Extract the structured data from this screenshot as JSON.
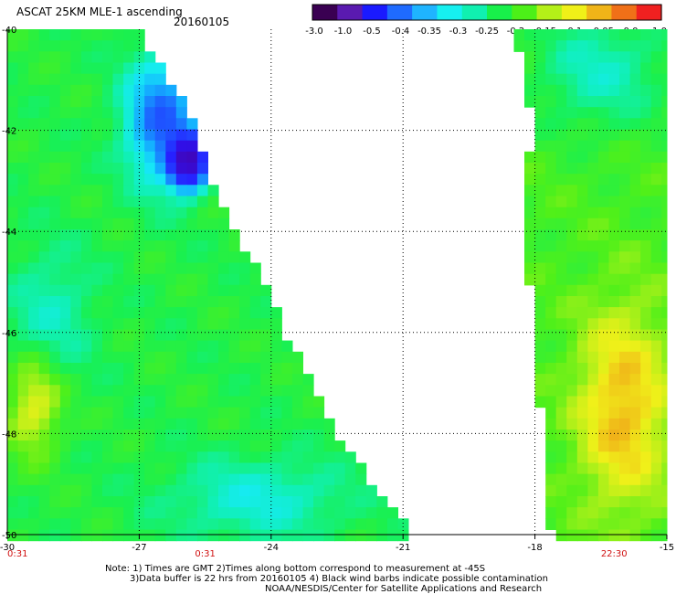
{
  "header": {
    "title": "ASCAT 25KM MLE-1 ascending",
    "date": "20160105"
  },
  "colorbar": {
    "tick_labels": [
      "-3.0",
      "-1.0",
      "-0.5",
      "-0.4",
      "-0.35",
      "-0.3",
      "-0.25",
      "-0.2",
      "-0.15",
      "-0.1",
      "-0.05",
      "0.0",
      "1.0"
    ],
    "colors": [
      "#3a0052",
      "#5a1ab0",
      "#1a1aff",
      "#1f6bff",
      "#1fb4ff",
      "#16f0f0",
      "#10f0b0",
      "#18f04a",
      "#4cf018",
      "#b4f018",
      "#f0f018",
      "#f0b418",
      "#f07018",
      "#f02020"
    ]
  },
  "chart_data": {
    "type": "heatmap",
    "x_ticks": [
      -30,
      -27,
      -24,
      -21,
      -18,
      -15
    ],
    "y_ticks": [
      -40,
      -42,
      -44,
      -46,
      -48,
      -50
    ],
    "x_tick_labels": [
      "-30",
      "-27",
      "-24",
      "-21",
      "-18",
      "-15"
    ],
    "y_tick_labels": [
      "-40",
      "-42",
      "-44",
      "-46",
      "-48",
      "-50"
    ],
    "xlim": [
      -30,
      -15
    ],
    "ylim": [
      -50,
      -40
    ],
    "grid": true,
    "time_labels": [
      {
        "text": "0:31",
        "x": -30
      },
      {
        "text": "0:31",
        "x": -25.5
      },
      {
        "text": "22:30",
        "x": -16.2
      }
    ],
    "swaths": [
      {
        "rows": [
          {
            "lat": -40,
            "lon_start": -30,
            "lon_end": -27.2
          },
          {
            "lat": -41,
            "lon_start": -30,
            "lon_end": -26.4
          },
          {
            "lat": -42,
            "lon_start": -30,
            "lon_end": -25.8
          },
          {
            "lat": -43,
            "lon_start": -30,
            "lon_end": -25.5
          },
          {
            "lat": -44,
            "lon_start": -30,
            "lon_end": -24.9
          },
          {
            "lat": -45,
            "lon_start": -30,
            "lon_end": -24.3
          },
          {
            "lat": -46,
            "lon_start": -30,
            "lon_end": -23.8
          },
          {
            "lat": -47,
            "lon_start": -30,
            "lon_end": -23.2
          },
          {
            "lat": -48,
            "lon_start": -30,
            "lon_end": -22.6
          },
          {
            "lat": -49,
            "lon_start": -30,
            "lon_end": -21.8
          },
          {
            "lat": -50,
            "lon_start": -30,
            "lon_end": -20.9
          }
        ]
      },
      {
        "rows": [
          {
            "lat": -40,
            "lon_start": -18.4,
            "lon_end": -15
          },
          {
            "lat": -41,
            "lon_start": -18.1,
            "lon_end": -15
          },
          {
            "lat": -42,
            "lon_start": -17.9,
            "lon_end": -15
          },
          {
            "lat": -43,
            "lon_start": -18.1,
            "lon_end": -15
          },
          {
            "lat": -44,
            "lon_start": -18.2,
            "lon_end": -15
          },
          {
            "lat": -45,
            "lon_start": -18.0,
            "lon_end": -15
          },
          {
            "lat": -46,
            "lon_start": -17.9,
            "lon_end": -15
          },
          {
            "lat": -47,
            "lon_start": -17.8,
            "lon_end": -15
          },
          {
            "lat": -48,
            "lon_start": -17.7,
            "lon_end": -15
          },
          {
            "lat": -49,
            "lon_start": -17.6,
            "lon_end": -15
          },
          {
            "lat": -50,
            "lon_start": -17.5,
            "lon_end": -15
          }
        ]
      }
    ],
    "features": [
      {
        "name": "low-mle-region",
        "value": -0.45,
        "lat_center": -41.8,
        "lon_center": -26.5,
        "lat_radius": 1.5,
        "lon_radius": 1.0
      },
      {
        "name": "very-low-mle-core",
        "value": -0.9,
        "lat_center": -42.6,
        "lon_center": -25.9,
        "lat_radius": 0.6,
        "lon_radius": 0.5
      },
      {
        "name": "cyan-band-west",
        "value": -0.28,
        "lat_center": -45.6,
        "lon_center": -29.0,
        "lat_radius": 1.6,
        "lon_radius": 1.2
      },
      {
        "name": "yellow-patch-west",
        "value": -0.1,
        "lat_center": -47.5,
        "lon_center": -29.4,
        "lat_radius": 1.2,
        "lon_radius": 0.8
      },
      {
        "name": "cyan-trail-south",
        "value": -0.3,
        "lat_center": -49.3,
        "lon_center": -24.3,
        "lat_radius": 1.0,
        "lon_radius": 2.5
      },
      {
        "name": "east-swath-cyan-north",
        "value": -0.28,
        "lat_center": -40.8,
        "lon_center": -16.5,
        "lat_radius": 1.5,
        "lon_radius": 2.0
      },
      {
        "name": "east-swath-yellow-south",
        "value": -0.05,
        "lat_center": -47.5,
        "lon_center": -16.0,
        "lat_radius": 2.5,
        "lon_radius": 1.3
      }
    ]
  },
  "notes": {
    "line1": "Note: 1) Times are GMT 2)Times along bottom correspond to measurement at -45S",
    "line2": "3)Data buffer is 22 hrs from 20160105 4) Black wind barbs indicate possible contamination",
    "line3": "NOAA/NESDIS/Center for Satellite Applications and Research"
  }
}
